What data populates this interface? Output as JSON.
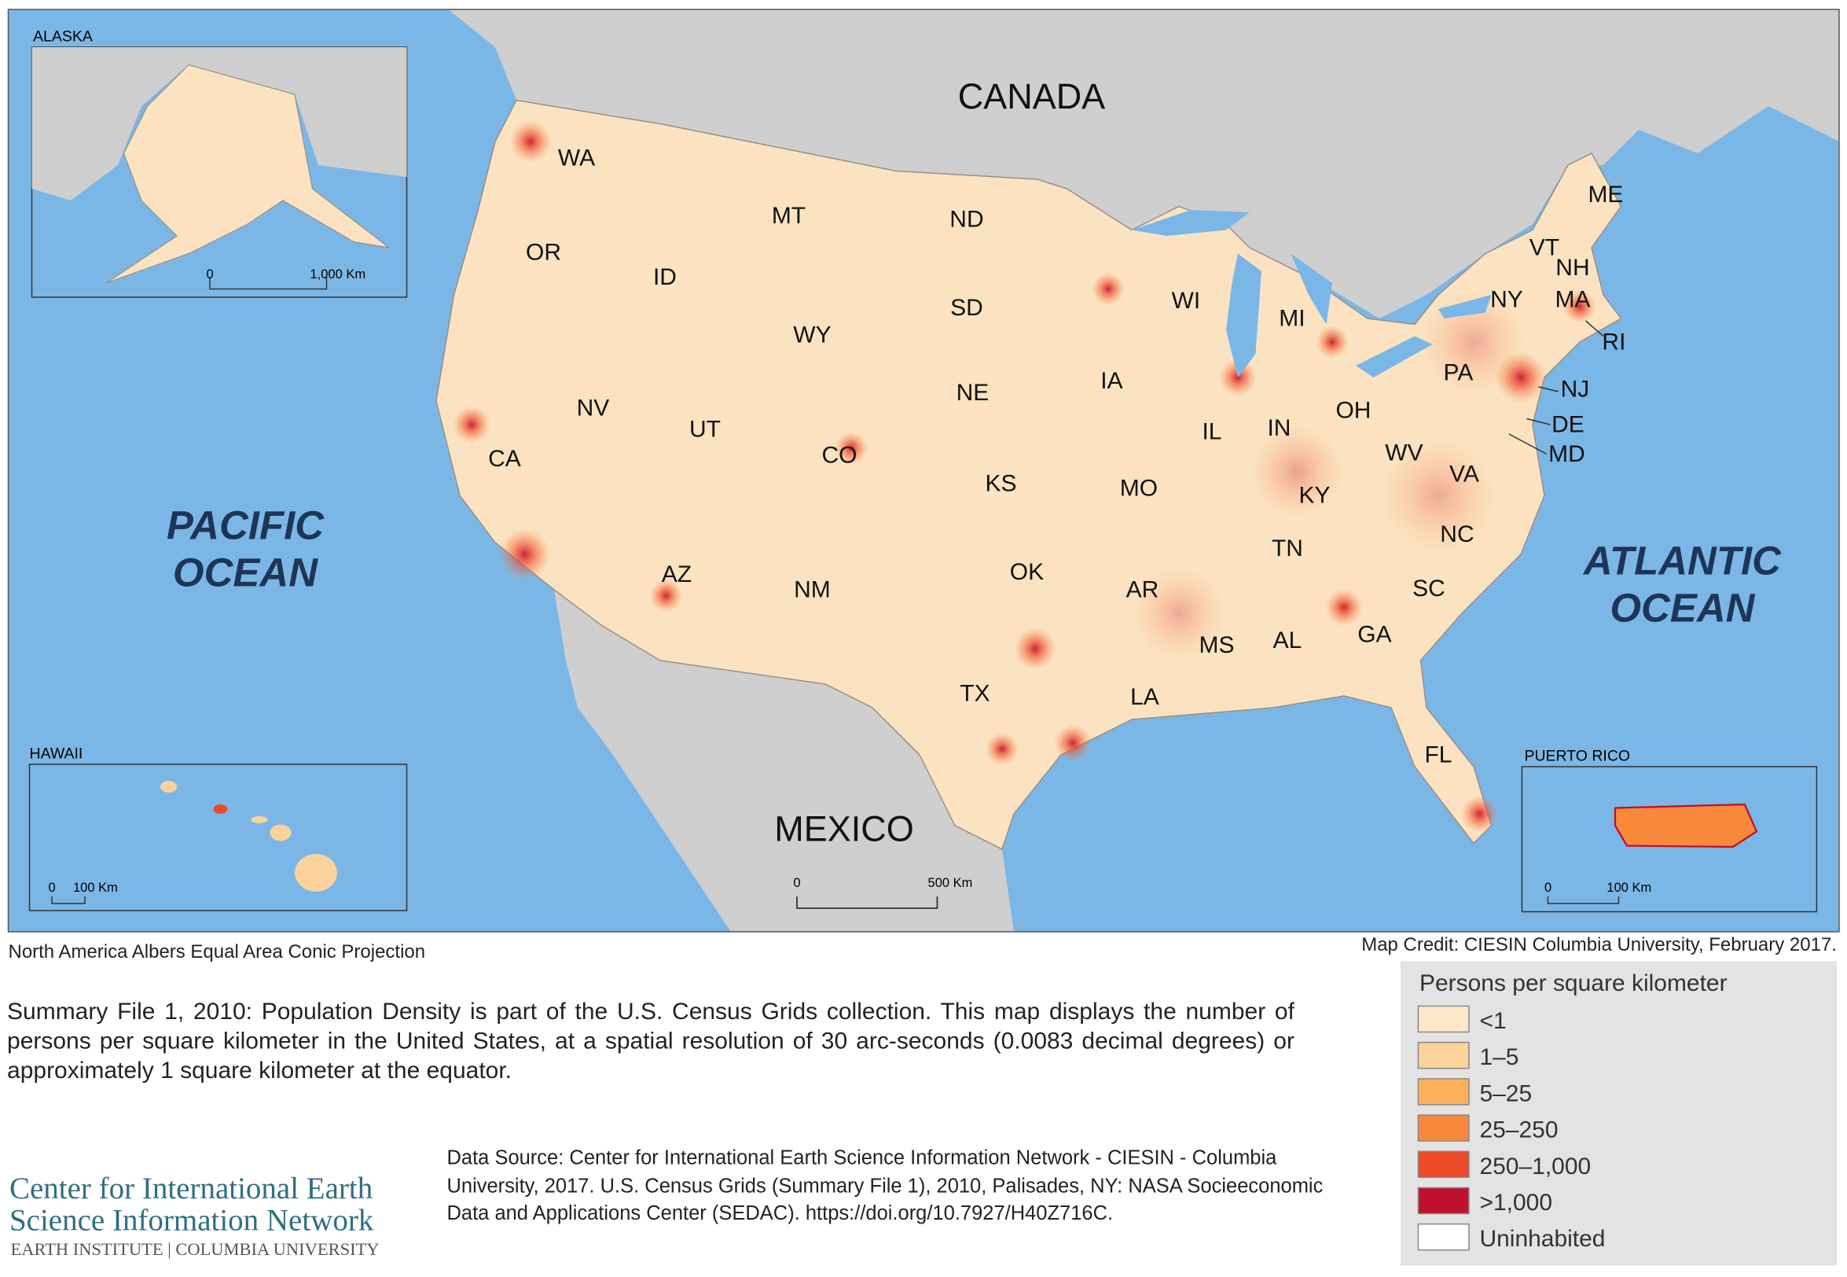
{
  "map": {
    "countries": {
      "canada": "CANADA",
      "mexico": "MEXICO"
    },
    "oceans": {
      "pacific": [
        "PACIFIC",
        "OCEAN"
      ],
      "atlantic": [
        "ATLANTIC",
        "OCEAN"
      ]
    },
    "states": [
      "WA",
      "OR",
      "ID",
      "MT",
      "ND",
      "SD",
      "WY",
      "NV",
      "UT",
      "CO",
      "NE",
      "KS",
      "CA",
      "AZ",
      "NM",
      "OK",
      "TX",
      "IA",
      "MO",
      "AR",
      "LA",
      "WI",
      "MI",
      "IL",
      "IN",
      "OH",
      "KY",
      "TN",
      "MS",
      "AL",
      "GA",
      "FL",
      "SC",
      "NC",
      "VA",
      "WV",
      "PA",
      "NY",
      "ME",
      "VT",
      "NH",
      "MA",
      "RI",
      "NJ",
      "DE",
      "MD"
    ],
    "scale_bar": [
      "0",
      "500 Km"
    ],
    "insets": {
      "alaska": {
        "title": "ALASKA",
        "scale_bar": [
          "0",
          "1,000 Km"
        ]
      },
      "hawaii": {
        "title": "HAWAII",
        "scale_bar": [
          "0",
          "100 Km"
        ]
      },
      "puerto_rico": {
        "title": "PUERTO RICO",
        "scale_bar": [
          "0",
          "100 Km"
        ]
      }
    }
  },
  "projection": "North America Albers Equal Area Conic Projection",
  "credit": "Map Credit: CIESIN Columbia University, February 2017.",
  "description": "Summary File 1, 2010: Population Density is part of the U.S. Census Grids collection. This map displays the number of persons per square kilometer in the United States, at a spatial resolution of 30 arc-seconds (0.0083 decimal degrees) or approximately 1 square kilometer at the equator.",
  "data_source": "Data Source: Center for International Earth Science Information Network - CIESIN - Columbia University, 2017. U.S. Census Grids (Summary File 1), 2010, Palisades, NY: NASA Socieeconomic Data and Applications Center (SEDAC). https://doi.org/10.7927/H40Z716C.",
  "legend": {
    "title": "Persons per square kilometer",
    "items": [
      {
        "label": "<1",
        "color": "#fde7c8"
      },
      {
        "label": "1–5",
        "color": "#fdd29c"
      },
      {
        "label": "5–25",
        "color": "#fbb15a"
      },
      {
        "label": "25–250",
        "color": "#f7883c"
      },
      {
        "label": "250–1,000",
        "color": "#ee4a2a"
      },
      {
        "label": ">1,000",
        "color": "#c0102b"
      },
      {
        "label": "Uninhabited",
        "color": "#ffffff"
      }
    ]
  },
  "logo": [
    "Center for International Earth",
    "Science Information Network",
    "EARTH INSTITUTE | COLUMBIA UNIVERSITY"
  ]
}
